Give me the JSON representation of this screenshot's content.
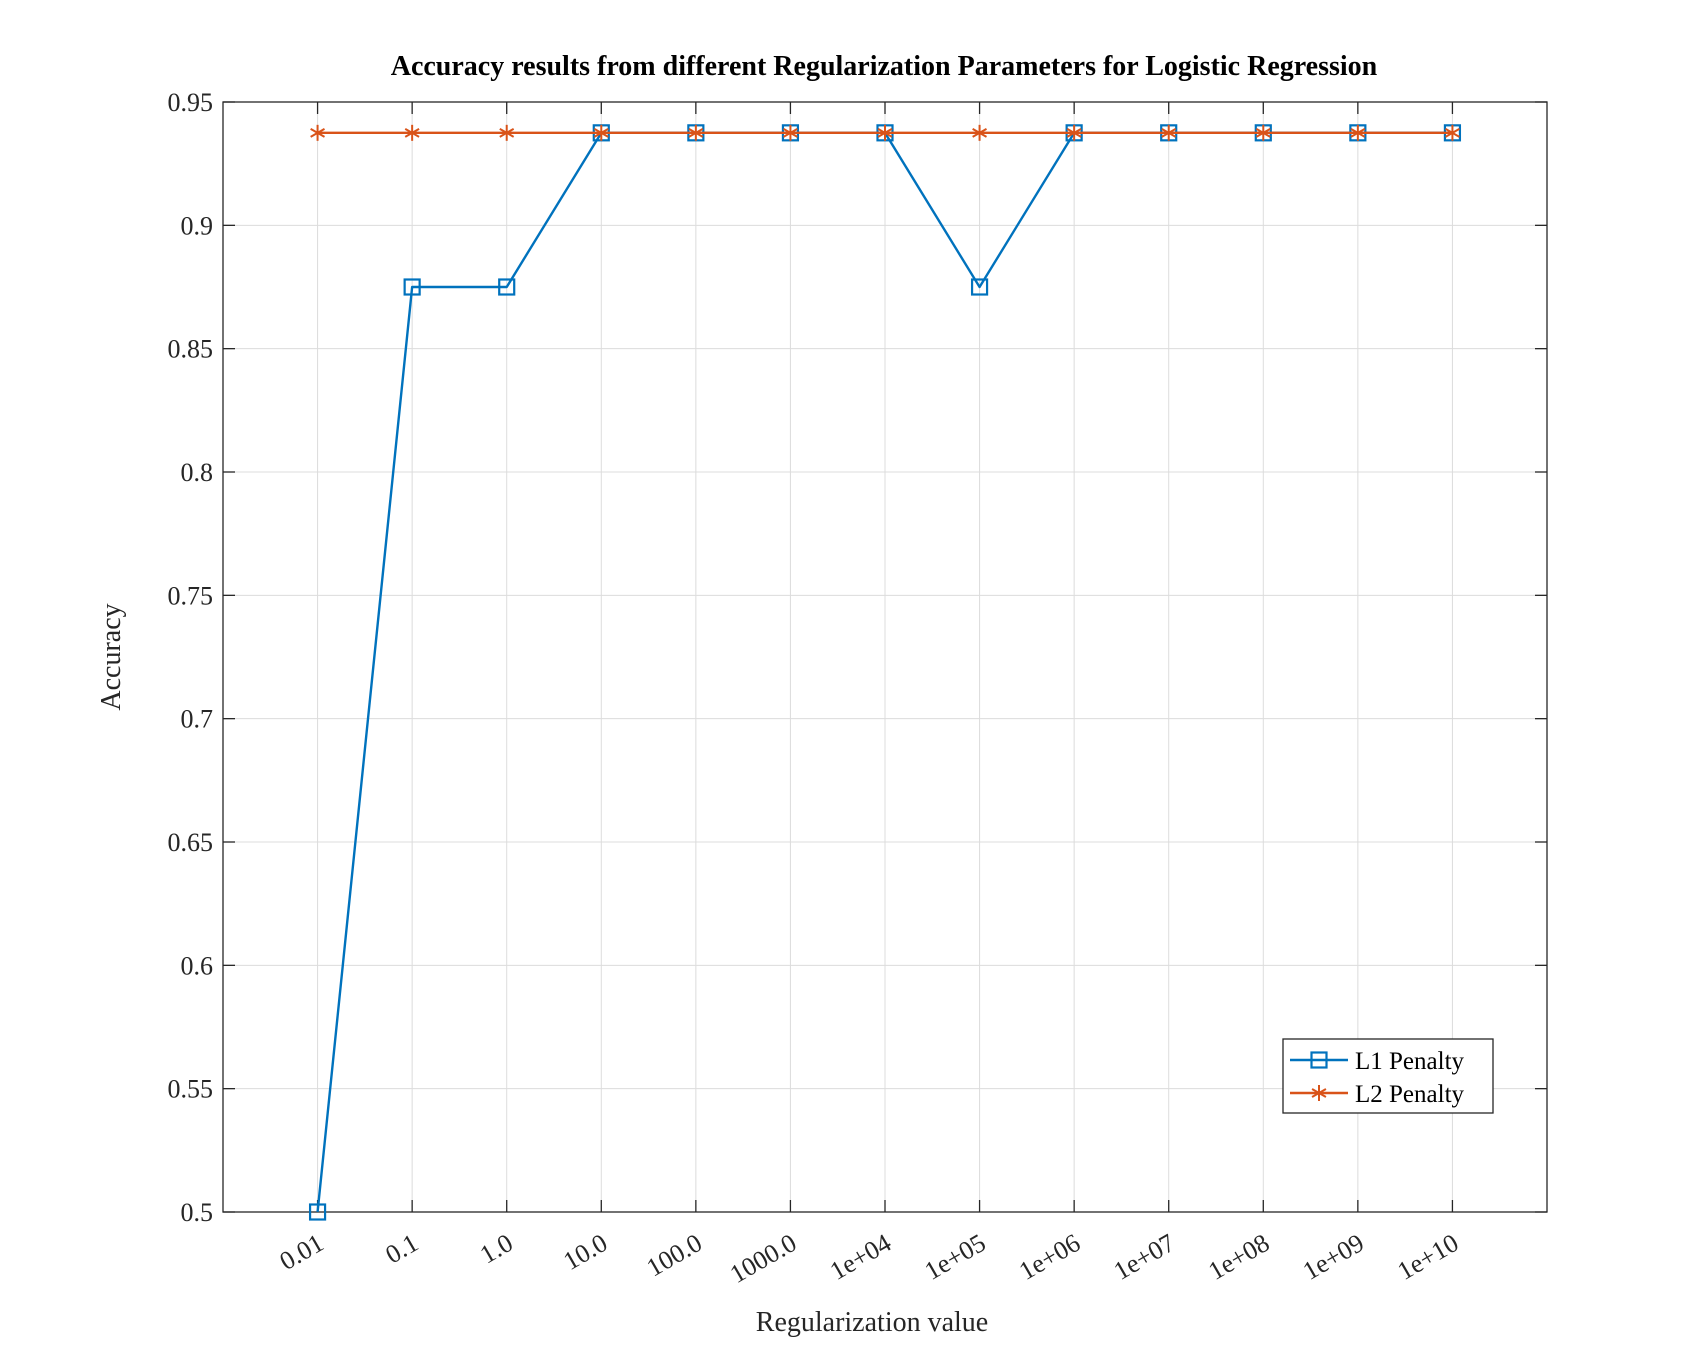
{
  "chart_data": {
    "type": "line",
    "title": "Accuracy results from different Regularization Parameters for Logistic Regression",
    "xlabel": "Regularization value",
    "ylabel": "Accuracy",
    "categories": [
      "0.01",
      "0.1",
      "1.0",
      "10.0",
      "100.0",
      "1000.0",
      "1e+04",
      "1e+05",
      "1e+06",
      "1e+07",
      "1e+08",
      "1e+09",
      "1e+10"
    ],
    "ylim": [
      0.5,
      0.95
    ],
    "yticks": [
      "0.5",
      "0.55",
      "0.6",
      "0.65",
      "0.7",
      "0.75",
      "0.8",
      "0.85",
      "0.9",
      "0.95"
    ],
    "grid": true,
    "legend_position": "bottom-right",
    "series": [
      {
        "name": "L1 Penalty",
        "color": "#0072BD",
        "marker": "square",
        "values": [
          0.5,
          0.875,
          0.875,
          0.9375,
          0.9375,
          0.9375,
          0.9375,
          0.875,
          0.9375,
          0.9375,
          0.9375,
          0.9375,
          0.9375
        ]
      },
      {
        "name": "L2 Penalty",
        "color": "#D95319",
        "marker": "asterisk",
        "values": [
          0.9375,
          0.9375,
          0.9375,
          0.9375,
          0.9375,
          0.9375,
          0.9375,
          0.9375,
          0.9375,
          0.9375,
          0.9375,
          0.9375,
          0.9375
        ]
      }
    ]
  }
}
